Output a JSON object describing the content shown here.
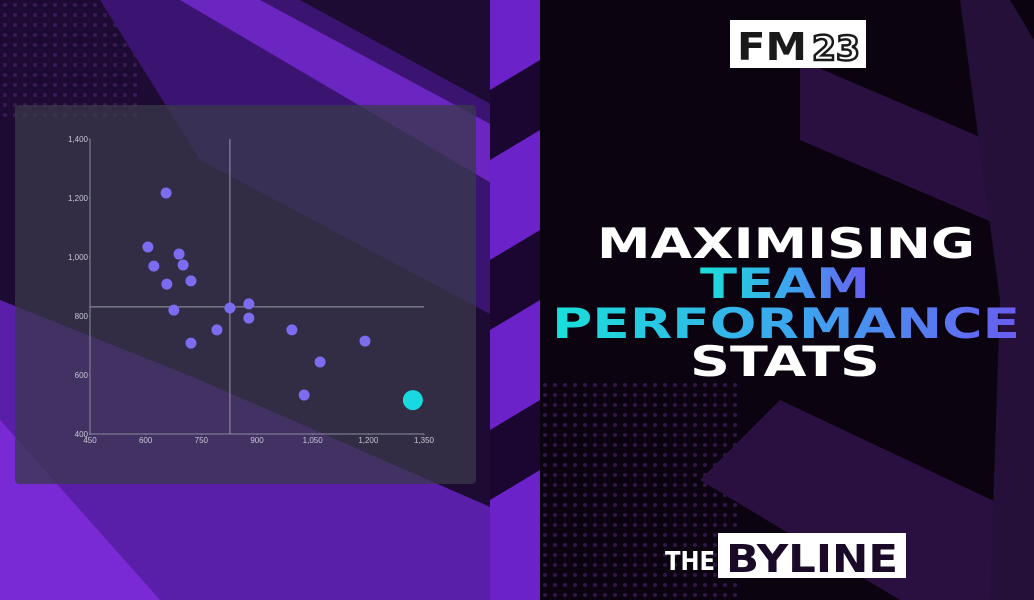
{
  "chart_data": {
    "type": "scatter",
    "x": [
      655,
      606,
      622,
      690,
      701,
      722,
      657,
      676,
      792,
      722,
      827,
      878,
      878,
      994,
      1070,
      1027,
      1191,
      1320
    ],
    "values": [
      1217,
      1034,
      969,
      1010,
      973,
      919,
      908,
      820,
      753,
      708,
      827,
      841,
      793,
      753,
      644,
      532,
      715,
      515
    ],
    "point_colors": [
      "#7b6cf0",
      "#7b6cf0",
      "#7b6cf0",
      "#7b6cf0",
      "#7b6cf0",
      "#7b6cf0",
      "#7b6cf0",
      "#7b6cf0",
      "#7b6cf0",
      "#7b6cf0",
      "#7b6cf0",
      "#7b6cf0",
      "#7b6cf0",
      "#7b6cf0",
      "#7b6cf0",
      "#7b6cf0",
      "#7b6cf0",
      "#19d9e0"
    ],
    "xlim": [
      450,
      1350
    ],
    "xticks": [
      450,
      600,
      750,
      900,
      {
        "value": 1050,
        "label": "1,050"
      },
      {
        "value": 1200,
        "label": "1,200"
      },
      {
        "value": 1350,
        "label": "1,350"
      }
    ],
    "ylim": [
      400,
      1400
    ],
    "yticks": [
      400,
      600,
      800,
      {
        "value": 1000,
        "label": "1,000"
      },
      {
        "value": 1200,
        "label": "1,200"
      },
      {
        "value": 1400,
        "label": "1,400"
      }
    ],
    "x_reference": 827,
    "y_reference": 831
  },
  "logo": {
    "brand": "FM",
    "edition": "23"
  },
  "headline": {
    "lines": [
      "MAXIMISING",
      "TEAM",
      "PERFORMANCE",
      "STATS"
    ]
  },
  "footer": {
    "prefix": "THE",
    "name": "BYLINE"
  }
}
